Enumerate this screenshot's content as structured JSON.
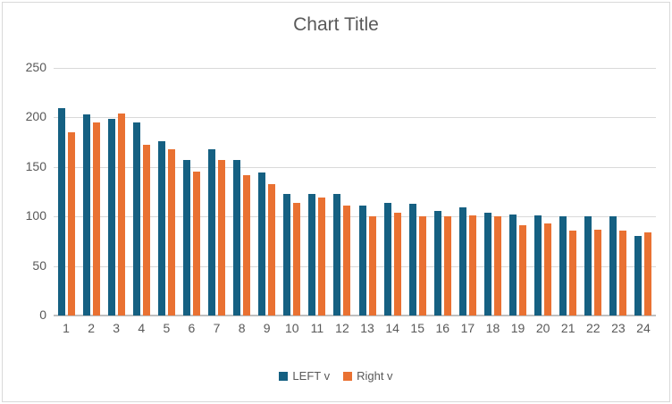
{
  "chart_data": {
    "type": "bar",
    "title": "Chart Title",
    "categories": [
      "1",
      "2",
      "3",
      "4",
      "5",
      "6",
      "7",
      "8",
      "9",
      "10",
      "11",
      "12",
      "13",
      "14",
      "15",
      "16",
      "17",
      "18",
      "19",
      "20",
      "21",
      "22",
      "23",
      "24"
    ],
    "series": [
      {
        "name": "LEFT v",
        "color": "#156082",
        "values": [
          209,
          203,
          199,
          195,
          176,
          157,
          168,
          157,
          144,
          123,
          123,
          123,
          111,
          114,
          113,
          106,
          109,
          104,
          102,
          101,
          100,
          100,
          100,
          80
        ]
      },
      {
        "name": "Right v",
        "color": "#E97132",
        "values": [
          185,
          195,
          204,
          172,
          168,
          145,
          157,
          142,
          133,
          114,
          119,
          111,
          100,
          104,
          100,
          100,
          101,
          100,
          91,
          93,
          86,
          87,
          86,
          84
        ]
      }
    ],
    "xlabel": "",
    "ylabel": "",
    "ylim": [
      0,
      250
    ],
    "yticks": [
      0,
      50,
      100,
      150,
      200,
      250
    ],
    "grid": true,
    "legend_position": "bottom",
    "colors": {
      "title_text": "#595959",
      "axis_text": "#595959",
      "gridline": "#d9d9d9",
      "axis_line": "#bfbfbf",
      "background": "#ffffff",
      "frame_border": "#d9d9d9"
    }
  }
}
